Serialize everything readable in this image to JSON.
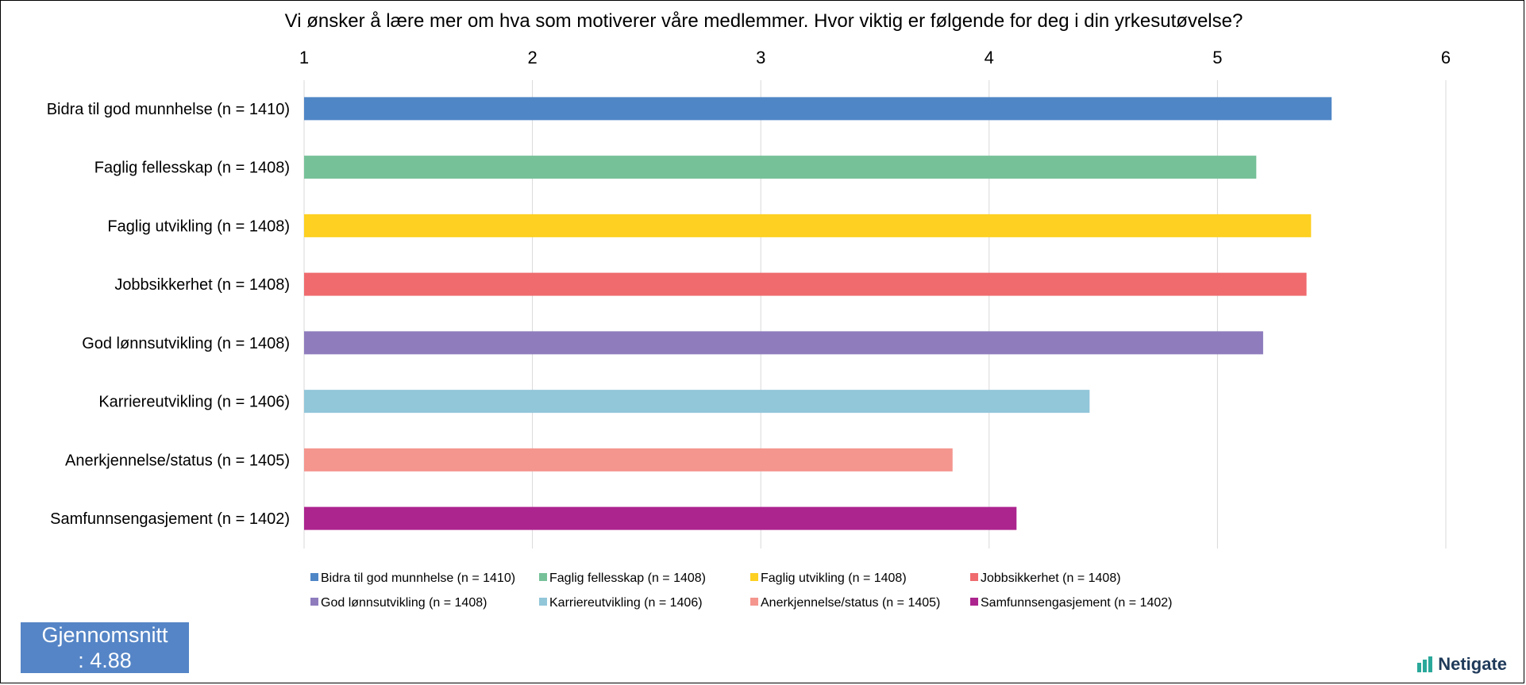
{
  "chart_data": {
    "type": "bar",
    "orientation": "horizontal",
    "title": "Vi ønsker å lære mer om hva som motiverer våre medlemmer. Hvor viktig er følgende for deg i din yrkesutøvelse?",
    "xlim": [
      1,
      6
    ],
    "xticks": [
      "1",
      "2",
      "3",
      "4",
      "5",
      "6"
    ],
    "grid": true,
    "legend_position": "bottom",
    "categories": [
      "Bidra til god munnhelse (n = 1410)",
      "Faglig fellesskap (n = 1408)",
      "Faglig utvikling (n = 1408)",
      "Jobbsikkerhet (n = 1408)",
      "God lønnsutvikling (n = 1408)",
      "Karriereutvikling (n = 1406)",
      "Anerkjennelse/status (n = 1405)",
      "Samfunnsengasjement (n = 1402)"
    ],
    "values": [
      5.5,
      5.17,
      5.41,
      5.39,
      5.2,
      4.44,
      3.84,
      4.12
    ],
    "colors": [
      "#4f86c6",
      "#77c199",
      "#fdd022",
      "#ef6b6e",
      "#8e7cbd",
      "#92c6d9",
      "#f4958e",
      "#ac248e"
    ]
  },
  "average": {
    "label": "Gjennomsnitt",
    "value": ": 4.88"
  },
  "brand": {
    "name": "Netigate",
    "icon": "netigate-logo-icon"
  }
}
